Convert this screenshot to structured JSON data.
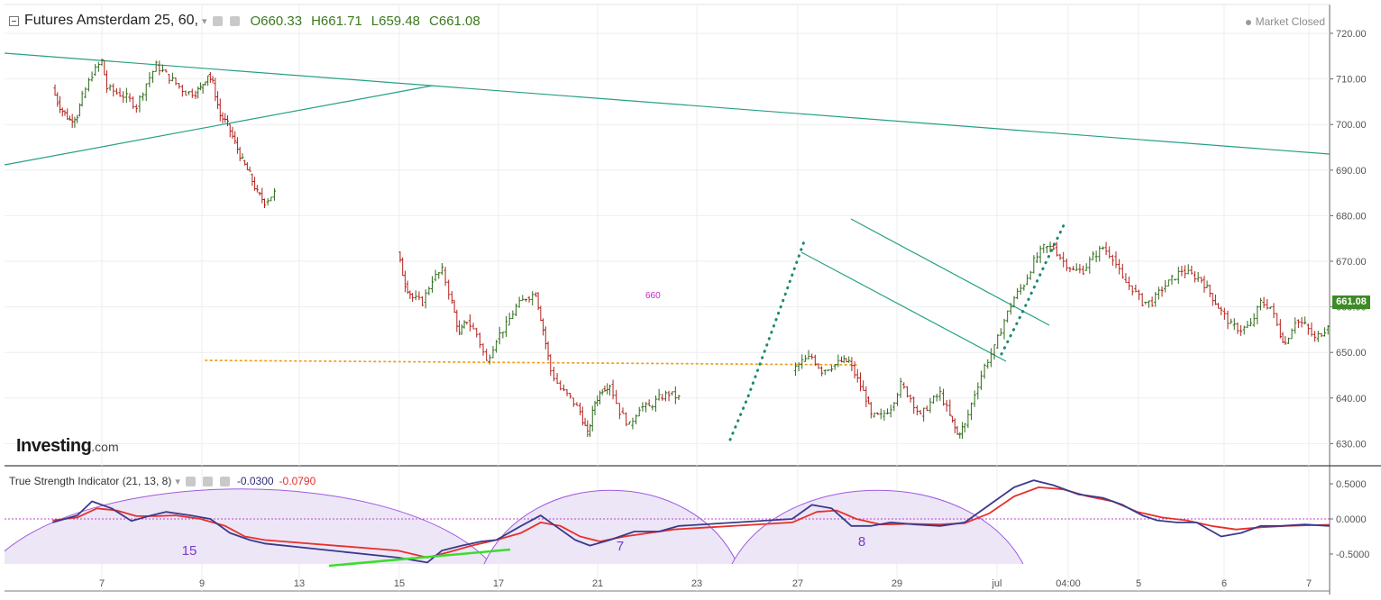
{
  "header": {
    "symbol_title": "Futures Amsterdam 25, 60,",
    "open_label": "O660.33",
    "high_label": "H661.71",
    "low_label": "L659.48",
    "close_label": "C661.08",
    "market_status": "Market Closed"
  },
  "branding": {
    "logo_text": "Investing",
    "logo_suffix": ".com"
  },
  "indicator": {
    "title": "True Strength Indicator (21, 13, 8)",
    "value1": "-0.0300",
    "value2": "-0.0790",
    "cycle_labels": [
      "15",
      "7",
      "8"
    ]
  },
  "current_price": "661.08",
  "annotation_text": "660",
  "colors": {
    "up_bar": "#2e6b1a",
    "down_bar": "#b3201b",
    "trendline": "#26a085",
    "dotted_projection": "#1a8a70",
    "support_line": "#f0a020",
    "tsi_line": "#3a3a8c",
    "signal_line": "#e8302a",
    "cycle_arc": "#a05ae0",
    "cycle_fill": "#ece6f7",
    "divergence_line": "#3cdc2c",
    "zero_line": "#c040d0",
    "price_badge": "#3d8a26"
  },
  "chart_data": [
    {
      "type": "ohlc",
      "price_axis": {
        "min": 625,
        "max": 725,
        "ticks": [
          "720.00",
          "710.00",
          "700.00",
          "690.00",
          "680.00",
          "670.00",
          "660.00",
          "650.00",
          "640.00",
          "630.00"
        ]
      },
      "time_axis": {
        "labels": [
          "7",
          "9",
          "13",
          "15",
          "17",
          "21",
          "23",
          "27",
          "29",
          "jul",
          "04:00",
          "5",
          "6",
          "7"
        ]
      },
      "path": [
        [
          "6.0",
          708
        ],
        [
          "6.1",
          705
        ],
        [
          "6.2",
          703
        ],
        [
          "6.35",
          701
        ],
        [
          "6.5",
          702
        ],
        [
          "6.6",
          706
        ],
        [
          "6.8",
          711
        ],
        [
          "7.0",
          714
        ],
        [
          "7.1",
          708
        ],
        [
          "7.3",
          707
        ],
        [
          "7.5",
          706
        ],
        [
          "7.7",
          704
        ],
        [
          "7.9",
          709
        ],
        [
          "8.1",
          713
        ],
        [
          "8.3",
          711
        ],
        [
          "8.5",
          709
        ],
        [
          "8.7",
          707
        ],
        [
          "8.9",
          707
        ],
        [
          "9.0",
          708
        ],
        [
          "9.15",
          711
        ],
        [
          "9.25",
          709
        ],
        [
          "9.4",
          702
        ],
        [
          "9.55",
          700
        ],
        [
          "9.7",
          696
        ],
        [
          "9.85",
          692
        ],
        [
          "10.0",
          689
        ],
        [
          "10.15",
          685
        ],
        [
          "10.3",
          683
        ],
        [
          "10.5",
          685
        ],
        [
          "13.0",
          672
        ],
        [
          "13.15",
          665
        ],
        [
          "13.3",
          662
        ],
        [
          "13.5",
          661
        ],
        [
          "13.7",
          666
        ],
        [
          "13.9",
          668
        ],
        [
          "14.1",
          661
        ],
        [
          "14.25",
          654
        ],
        [
          "14.4",
          657
        ],
        [
          "14.6",
          654
        ],
        [
          "14.8",
          648
        ],
        [
          "15.0",
          653
        ],
        [
          "15.2",
          656
        ],
        [
          "15.4",
          660
        ],
        [
          "15.6",
          662
        ],
        [
          "15.8",
          663
        ],
        [
          "15.95",
          655
        ],
        [
          "16.1",
          646
        ],
        [
          "16.3",
          642
        ],
        [
          "16.5",
          640
        ],
        [
          "16.7",
          637
        ],
        [
          "16.85",
          632
        ],
        [
          "17.0",
          639
        ],
        [
          "17.15",
          642
        ],
        [
          "17.3",
          643
        ],
        [
          "17.5",
          637
        ],
        [
          "17.7",
          634
        ],
        [
          "17.9",
          638
        ],
        [
          "18.1",
          638
        ],
        [
          "18.3",
          640
        ],
        [
          "18.5",
          641
        ],
        [
          "18.7",
          640
        ],
        [
          "21.0",
          646
        ],
        [
          "21.2",
          648
        ],
        [
          "21.4",
          649
        ],
        [
          "21.6",
          646
        ],
        [
          "21.8",
          647
        ],
        [
          "22.0",
          648
        ],
        [
          "22.15",
          648
        ],
        [
          "22.5",
          640
        ],
        [
          "22.6",
          636
        ],
        [
          "22.8",
          636
        ],
        [
          "23.0",
          638
        ],
        [
          "23.2",
          643
        ],
        [
          "23.4",
          640
        ],
        [
          "23.6",
          636
        ],
        [
          "23.8",
          639
        ],
        [
          "24.0",
          641
        ],
        [
          "24.2",
          636
        ],
        [
          "24.35",
          632
        ],
        [
          "24.5",
          634
        ],
        [
          "24.7",
          641
        ],
        [
          "24.9",
          647
        ],
        [
          "25.1",
          651
        ],
        [
          "25.3",
          657
        ],
        [
          "25.5",
          662
        ],
        [
          "25.7",
          665
        ],
        [
          "25.9",
          670
        ],
        [
          "26.1",
          673
        ],
        [
          "26.3",
          673
        ],
        [
          "26.5",
          670
        ],
        [
          "26.7",
          668
        ],
        [
          "26.9",
          668
        ],
        [
          "27.1",
          671
        ],
        [
          "27.3",
          673
        ],
        [
          "27.5",
          671
        ],
        [
          "27.7",
          666
        ],
        [
          "27.9",
          664
        ],
        [
          "28.1",
          661
        ],
        [
          "28.3",
          661
        ],
        [
          "28.5",
          664
        ],
        [
          "28.7",
          666
        ],
        [
          "28.9",
          668
        ],
        [
          "29.1",
          667
        ],
        [
          "29.3",
          666
        ],
        [
          "29.7",
          659
        ],
        [
          "29.9",
          656
        ],
        [
          "30.1",
          655
        ],
        [
          "30.3",
          656
        ],
        [
          "30.5",
          661
        ],
        [
          "30.7",
          660
        ],
        [
          "30.9",
          654
        ],
        [
          "31.0",
          652
        ],
        [
          "31.2",
          657
        ],
        [
          "31.4",
          656
        ],
        [
          "31.6",
          653
        ],
        [
          "31.8",
          655
        ],
        [
          "32.0",
          659
        ],
        [
          "32.2",
          661
        ]
      ]
    },
    {
      "type": "line",
      "series": [
        {
          "name": "-0.0300",
          "points": [
            [
              "6.0",
              -0.05
            ],
            [
              "6.5",
              0.05
            ],
            [
              "6.8",
              0.25
            ],
            [
              "7.2",
              0.15
            ],
            [
              "7.6",
              -0.03
            ],
            [
              "8.0",
              0.05
            ],
            [
              "8.3",
              0.1
            ],
            [
              "8.8",
              0.05
            ],
            [
              "9.2",
              0.0
            ],
            [
              "9.6",
              -0.2
            ],
            [
              "10.0",
              -0.3
            ],
            [
              "10.3",
              -0.35
            ],
            [
              "13.0",
              -0.55
            ],
            [
              "13.6",
              -0.62
            ],
            [
              "13.9",
              -0.45
            ],
            [
              "14.3",
              -0.38
            ],
            [
              "14.7",
              -0.32
            ],
            [
              "15.0",
              -0.3
            ],
            [
              "15.5",
              -0.1
            ],
            [
              "15.9",
              0.05
            ],
            [
              "16.2",
              -0.1
            ],
            [
              "16.6",
              -0.3
            ],
            [
              "16.9",
              -0.38
            ],
            [
              "17.3",
              -0.3
            ],
            [
              "17.8",
              -0.18
            ],
            [
              "18.3",
              -0.18
            ],
            [
              "18.7",
              -0.1
            ],
            [
              "21.0",
              0.0
            ],
            [
              "21.4",
              0.2
            ],
            [
              "21.8",
              0.15
            ],
            [
              "22.2",
              -0.1
            ],
            [
              "22.6",
              -0.1
            ],
            [
              "23.0",
              -0.05
            ],
            [
              "23.5",
              -0.08
            ],
            [
              "24.0",
              -0.1
            ],
            [
              "24.5",
              -0.05
            ],
            [
              "25.0",
              0.2
            ],
            [
              "25.5",
              0.45
            ],
            [
              "25.9",
              0.55
            ],
            [
              "26.3",
              0.48
            ],
            [
              "26.8",
              0.35
            ],
            [
              "27.3",
              0.3
            ],
            [
              "27.7",
              0.2
            ],
            [
              "28.1",
              0.05
            ],
            [
              "28.4",
              -0.02
            ],
            [
              "28.8",
              -0.05
            ],
            [
              "29.2",
              -0.05
            ],
            [
              "29.7",
              -0.25
            ],
            [
              "30.1",
              -0.2
            ],
            [
              "30.5",
              -0.1
            ],
            [
              "30.9",
              -0.1
            ],
            [
              "31.4",
              -0.08
            ],
            [
              "31.9",
              -0.1
            ],
            [
              "32.2",
              -0.03
            ]
          ]
        },
        {
          "name": "-0.0790",
          "points": [
            [
              "6.0",
              -0.02
            ],
            [
              "6.5",
              0.02
            ],
            [
              "6.9",
              0.15
            ],
            [
              "7.3",
              0.12
            ],
            [
              "7.7",
              0.04
            ],
            [
              "8.1",
              0.04
            ],
            [
              "8.5",
              0.05
            ],
            [
              "9.0",
              0.0
            ],
            [
              "9.5",
              -0.1
            ],
            [
              "9.9",
              -0.25
            ],
            [
              "10.3",
              -0.3
            ],
            [
              "13.0",
              -0.45
            ],
            [
              "13.6",
              -0.55
            ],
            [
              "14.0",
              -0.48
            ],
            [
              "14.5",
              -0.38
            ],
            [
              "15.0",
              -0.3
            ],
            [
              "15.5",
              -0.2
            ],
            [
              "15.9",
              -0.05
            ],
            [
              "16.3",
              -0.1
            ],
            [
              "16.7",
              -0.25
            ],
            [
              "17.1",
              -0.32
            ],
            [
              "17.6",
              -0.25
            ],
            [
              "18.1",
              -0.2
            ],
            [
              "18.6",
              -0.15
            ],
            [
              "21.0",
              -0.05
            ],
            [
              "21.5",
              0.1
            ],
            [
              "21.9",
              0.12
            ],
            [
              "22.3",
              0.0
            ],
            [
              "22.8",
              -0.08
            ],
            [
              "23.4",
              -0.07
            ],
            [
              "24.0",
              -0.08
            ],
            [
              "24.5",
              -0.06
            ],
            [
              "25.0",
              0.08
            ],
            [
              "25.5",
              0.32
            ],
            [
              "26.0",
              0.45
            ],
            [
              "26.5",
              0.42
            ],
            [
              "27.0",
              0.32
            ],
            [
              "27.5",
              0.25
            ],
            [
              "28.0",
              0.1
            ],
            [
              "28.5",
              0.02
            ],
            [
              "29.0",
              -0.02
            ],
            [
              "29.5",
              -0.1
            ],
            [
              "30.0",
              -0.15
            ],
            [
              "30.5",
              -0.12
            ],
            [
              "31.0",
              -0.1
            ],
            [
              "31.5",
              -0.09
            ],
            [
              "32.2",
              -0.08
            ]
          ]
        }
      ],
      "value_axis": {
        "min": -0.62,
        "max": 0.6,
        "ticks": [
          "0.5000",
          "0.0000",
          "-0.5000"
        ]
      }
    }
  ]
}
